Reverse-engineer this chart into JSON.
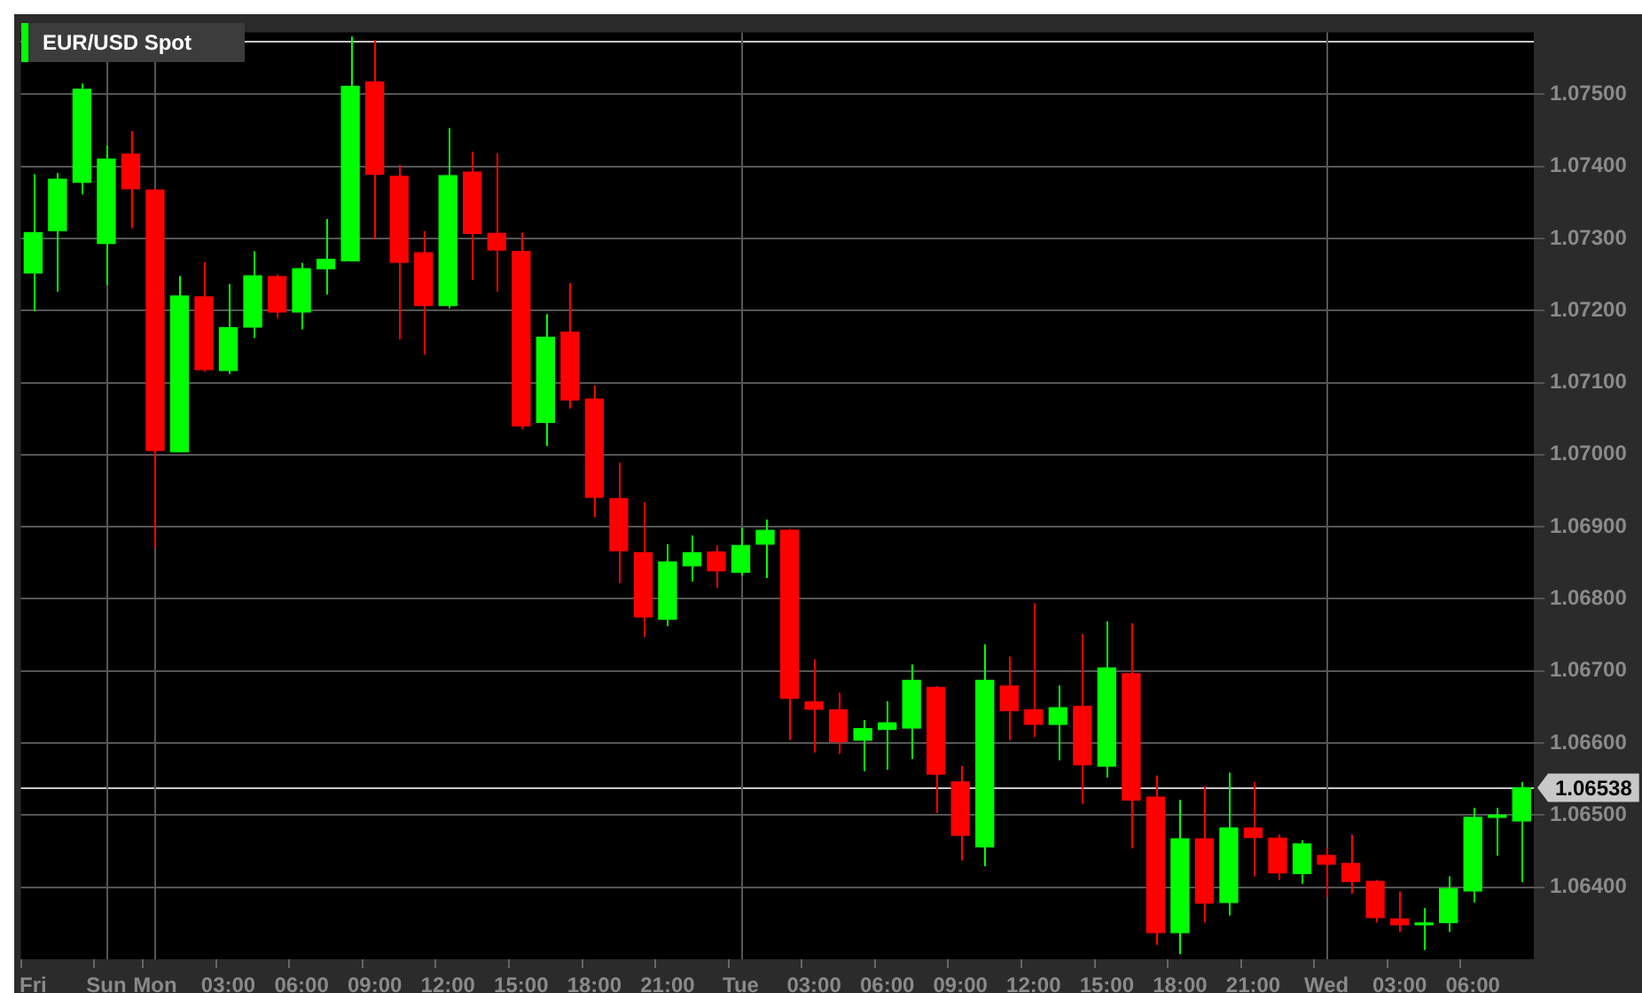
{
  "chart_data": {
    "type": "candlestick",
    "categories": [
      "Fri",
      null,
      null,
      "Sun",
      null,
      "Mon",
      null,
      null,
      "03:00",
      null,
      null,
      "06:00",
      null,
      null,
      "09:00",
      null,
      null,
      "12:00",
      null,
      null,
      "15:00",
      null,
      null,
      "18:00",
      null,
      null,
      "21:00",
      null,
      null,
      "Tue",
      null,
      null,
      "03:00",
      null,
      null,
      "06:00",
      null,
      null,
      "09:00",
      null,
      null,
      "12:00",
      null,
      null,
      "15:00",
      null,
      null,
      "18:00",
      null,
      null,
      "21:00",
      null,
      null,
      "Wed",
      null,
      null,
      "03:00",
      null,
      null,
      "06:00",
      null,
      null
    ],
    "series": [
      {
        "name": "EUR/USD Spot",
        "color": "#00ff00",
        "ohlc": [
          [
            1.07252,
            1.07389,
            1.07199,
            1.07308
          ],
          [
            1.07311,
            1.07391,
            1.07226,
            1.07382
          ],
          [
            1.07378,
            1.07515,
            1.07361,
            1.07507
          ],
          [
            1.07293,
            1.07429,
            1.07235,
            1.0741
          ],
          [
            1.07417,
            1.07449,
            1.07314,
            1.07369
          ],
          [
            1.07367,
            1.0737,
            1.06871,
            1.07006
          ],
          [
            1.07004,
            1.07248,
            1.07004,
            1.0722
          ],
          [
            1.07219,
            1.07267,
            1.07115,
            1.07118
          ],
          [
            1.07117,
            1.07237,
            1.07112,
            1.07176
          ],
          [
            1.07177,
            1.07282,
            1.07162,
            1.07248
          ],
          [
            1.07247,
            1.0725,
            1.07189,
            1.07198
          ],
          [
            1.07198,
            1.07266,
            1.07174,
            1.07258
          ],
          [
            1.07258,
            1.07327,
            1.07222,
            1.07271
          ],
          [
            1.07269,
            1.0758,
            1.07269,
            1.07511
          ],
          [
            1.07517,
            1.07575,
            1.07299,
            1.07389
          ],
          [
            1.07386,
            1.07402,
            1.0716,
            1.07267
          ],
          [
            1.0728,
            1.0731,
            1.07139,
            1.07207
          ],
          [
            1.07207,
            1.07453,
            1.07203,
            1.07387
          ],
          [
            1.07392,
            1.0742,
            1.07242,
            1.07307
          ],
          [
            1.07307,
            1.07418,
            1.07226,
            1.07284
          ],
          [
            1.07282,
            1.07308,
            1.07036,
            1.0704
          ],
          [
            1.07045,
            1.07195,
            1.07012,
            1.07163
          ],
          [
            1.0717,
            1.07238,
            1.07064,
            1.07076
          ],
          [
            1.07077,
            1.07096,
            1.06913,
            1.06941
          ],
          [
            1.06939,
            1.06989,
            1.06822,
            1.06867
          ],
          [
            1.06864,
            1.06934,
            1.06747,
            1.06775
          ],
          [
            1.06772,
            1.06876,
            1.06762,
            1.06851
          ],
          [
            1.06846,
            1.06888,
            1.06824,
            1.06864
          ],
          [
            1.06865,
            1.06874,
            1.06815,
            1.06839
          ],
          [
            1.06837,
            1.06899,
            1.06833,
            1.06874
          ],
          [
            1.06876,
            1.0691,
            1.06829,
            1.06895
          ],
          [
            1.06895,
            1.06897,
            1.06604,
            1.06662
          ],
          [
            1.06657,
            1.06716,
            1.06587,
            1.06647
          ],
          [
            1.06646,
            1.0667,
            1.06585,
            1.06602
          ],
          [
            1.06604,
            1.06632,
            1.06561,
            1.0662
          ],
          [
            1.06619,
            1.06658,
            1.06563,
            1.06628
          ],
          [
            1.06621,
            1.06709,
            1.06578,
            1.06687
          ],
          [
            1.06677,
            1.06679,
            1.06503,
            1.06557
          ],
          [
            1.06546,
            1.06568,
            1.06437,
            1.06472
          ],
          [
            1.06456,
            1.06737,
            1.06429,
            1.06687
          ],
          [
            1.06679,
            1.0672,
            1.06604,
            1.06645
          ],
          [
            1.06646,
            1.06794,
            1.06608,
            1.06626
          ],
          [
            1.06626,
            1.0668,
            1.06576,
            1.06649
          ],
          [
            1.06651,
            1.06751,
            1.06516,
            1.0657
          ],
          [
            1.06568,
            1.06769,
            1.06552,
            1.06704
          ],
          [
            1.06696,
            1.06766,
            1.06454,
            1.06521
          ],
          [
            1.06525,
            1.06555,
            1.0632,
            1.06337
          ],
          [
            1.06337,
            1.06521,
            1.06307,
            1.06467
          ],
          [
            1.06467,
            1.0654,
            1.06351,
            1.06378
          ],
          [
            1.06379,
            1.06559,
            1.06361,
            1.06482
          ],
          [
            1.06482,
            1.06546,
            1.06415,
            1.06469
          ],
          [
            1.06468,
            1.06473,
            1.0641,
            1.0642
          ],
          [
            1.06419,
            1.06465,
            1.06405,
            1.0646
          ],
          [
            1.06444,
            1.06455,
            1.06386,
            1.06432
          ],
          [
            1.06433,
            1.06473,
            1.06391,
            1.06408
          ],
          [
            1.06408,
            1.0641,
            1.06351,
            1.06358
          ],
          [
            1.06356,
            1.06394,
            1.06338,
            1.06348
          ],
          [
            1.06348,
            1.06371,
            1.06313,
            1.0635
          ],
          [
            1.06351,
            1.06415,
            1.06338,
            1.06398
          ],
          [
            1.06395,
            1.0651,
            1.06379,
            1.06497
          ],
          [
            1.06497,
            1.0651,
            1.06444,
            1.065
          ],
          [
            1.06492,
            1.06546,
            1.06407,
            1.06538
          ]
        ],
        "colors": [
          "#00ff00",
          "#00ff00",
          "#00ff00",
          "#00ff00",
          "#ff0000",
          "#ff0000",
          "#00ff00",
          "#ff0000",
          "#00ff00",
          "#00ff00",
          "#ff0000",
          "#00ff00",
          "#00ff00",
          "#00ff00",
          "#ff0000",
          "#ff0000",
          "#ff0000",
          "#00ff00",
          "#ff0000",
          "#ff0000",
          "#ff0000",
          "#00ff00",
          "#ff0000",
          "#ff0000",
          "#ff0000",
          "#ff0000",
          "#00ff00",
          "#00ff00",
          "#ff0000",
          "#00ff00",
          "#00ff00",
          "#ff0000",
          "#ff0000",
          "#ff0000",
          "#00ff00",
          "#00ff00",
          "#00ff00",
          "#ff0000",
          "#ff0000",
          "#00ff00",
          "#ff0000",
          "#ff0000",
          "#00ff00",
          "#ff0000",
          "#00ff00",
          "#ff0000",
          "#ff0000",
          "#00ff00",
          "#ff0000",
          "#00ff00",
          "#ff0000",
          "#ff0000",
          "#00ff00",
          "#ff0000",
          "#ff0000",
          "#ff0000",
          "#ff0000",
          "#00ff00",
          "#00ff00",
          "#00ff00",
          "#00ff00",
          "#00ff00"
        ]
      }
    ],
    "ylim": [
      1.063,
      1.07586
    ],
    "yticks": [
      {
        "value": 1.064,
        "label": "1.06400"
      },
      {
        "value": 1.065,
        "label": "1.06500"
      },
      {
        "value": 1.066,
        "label": "1.06600"
      },
      {
        "value": 1.067,
        "label": "1.06700"
      },
      {
        "value": 1.068,
        "label": "1.06800"
      },
      {
        "value": 1.069,
        "label": "1.06900"
      },
      {
        "value": 1.07,
        "label": "1.07000"
      },
      {
        "value": 1.071,
        "label": "1.07100"
      },
      {
        "value": 1.072,
        "label": "1.07200"
      },
      {
        "value": 1.073,
        "label": "1.07300"
      },
      {
        "value": 1.074,
        "label": "1.07400"
      },
      {
        "value": 1.075,
        "label": "1.07500"
      }
    ],
    "grid": "y",
    "legend": "top left",
    "ref_lines": [
      {
        "axis": "y",
        "value": 1.07573,
        "color": "#c8c8c8"
      },
      {
        "axis": "y",
        "value": 1.06538,
        "label": "1.06538",
        "color": "#c8c8c8"
      },
      {
        "axis": "x",
        "value": "Sun",
        "color": "#555555"
      },
      {
        "axis": "x",
        "value": "Mon",
        "color": "#555555"
      },
      {
        "axis": "x",
        "value": "Tue",
        "color": "#555555"
      },
      {
        "axis": "x",
        "value": "Wed",
        "color": "#555555"
      }
    ]
  }
}
